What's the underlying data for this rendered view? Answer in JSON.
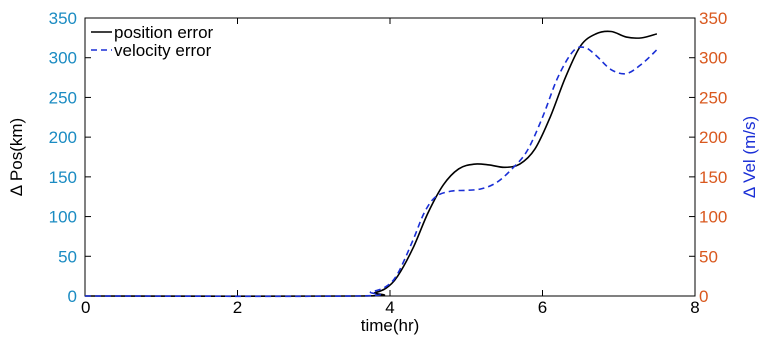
{
  "chart_data": {
    "type": "line",
    "title": "",
    "xlabel": "time(hr)",
    "ylabel_left": "Δ Pos(km)",
    "ylabel_right": "Δ Vel (m/s)",
    "xlim": [
      0,
      8
    ],
    "ylim_left": [
      0,
      350
    ],
    "ylim_right": [
      0,
      350
    ],
    "x_ticks": [
      "0",
      "2",
      "4",
      "6",
      "8"
    ],
    "y_ticks_left": [
      "0",
      "50",
      "100",
      "150",
      "200",
      "250",
      "300",
      "350"
    ],
    "y_ticks_right": [
      "0",
      "50",
      "100",
      "150",
      "200",
      "250",
      "300",
      "350"
    ],
    "grid": false,
    "legend": "top-left",
    "colors": {
      "left_axis": "#1a8bc2",
      "right_axis": "#d9581e",
      "right_label": "#1a2fd6",
      "position_series": "#000000",
      "velocity_series": "#1a2fd6"
    },
    "series": [
      {
        "name": "position error",
        "axis": "left",
        "style": "solid",
        "x": [
          0,
          3.6,
          3.8,
          3.95,
          4.1,
          4.3,
          4.5,
          4.7,
          4.9,
          5.1,
          5.3,
          5.5,
          5.7,
          5.9,
          6.1,
          6.3,
          6.5,
          6.7,
          6.9,
          7.1,
          7.3,
          7.5
        ],
        "y": [
          0,
          0,
          4,
          10,
          25,
          60,
          105,
          140,
          160,
          166,
          165,
          162,
          166,
          185,
          225,
          275,
          315,
          330,
          333,
          326,
          325,
          330
        ]
      },
      {
        "name": "velocity error",
        "axis": "right",
        "style": "dashed",
        "x": [
          0,
          3.55,
          3.75,
          3.95,
          4.1,
          4.3,
          4.45,
          4.6,
          4.8,
          5.0,
          5.2,
          5.4,
          5.6,
          5.8,
          6.0,
          6.2,
          6.4,
          6.55,
          6.7,
          6.9,
          7.1,
          7.3,
          7.5
        ],
        "y": [
          0,
          0,
          5,
          12,
          28,
          70,
          105,
          125,
          132,
          133,
          135,
          143,
          160,
          183,
          225,
          275,
          308,
          313,
          303,
          285,
          280,
          292,
          310
        ]
      }
    ]
  }
}
